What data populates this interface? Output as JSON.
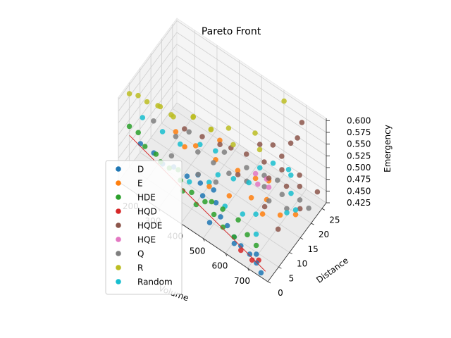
{
  "chart_data": {
    "type": "scatter",
    "projection": "3d",
    "title": "Pareto Front",
    "xlabel": "Volume",
    "ylabel": "Distance",
    "zlabel": "Emergency",
    "xlim": [
      120,
      790
    ],
    "ylim": [
      0,
      27
    ],
    "zlim": [
      0.425,
      0.605
    ],
    "xticks": [
      200,
      300,
      400,
      500,
      600,
      700
    ],
    "xtick_labels": [
      "200",
      "300",
      "400",
      "500",
      "600",
      "700"
    ],
    "yticks": [
      0,
      5,
      10,
      15,
      20,
      25
    ],
    "ytick_labels": [
      "0",
      "5",
      "10",
      "15",
      "20",
      "25"
    ],
    "zticks": [
      0.425,
      0.45,
      0.475,
      0.5,
      0.525,
      0.55,
      0.575,
      0.6
    ],
    "ztick_labels": [
      "0.425",
      "0.450",
      "0.475",
      "0.500",
      "0.525",
      "0.550",
      "0.575",
      "0.600"
    ],
    "grid": true,
    "legend_position": "lower-left",
    "series": [
      {
        "name": "D",
        "color": "#1f77b4",
        "points": [
          [
            180,
            4,
            0.5
          ],
          [
            230,
            5,
            0.49
          ],
          [
            260,
            6,
            0.47
          ],
          [
            300,
            7,
            0.47
          ],
          [
            350,
            8,
            0.46
          ],
          [
            400,
            9,
            0.455
          ],
          [
            430,
            7,
            0.45
          ],
          [
            480,
            8,
            0.445
          ],
          [
            520,
            6,
            0.44
          ],
          [
            560,
            5,
            0.44
          ],
          [
            600,
            4,
            0.435
          ],
          [
            640,
            3,
            0.435
          ],
          [
            680,
            3,
            0.43
          ],
          [
            720,
            2,
            0.43
          ],
          [
            750,
            1,
            0.425
          ],
          [
            380,
            10,
            0.46
          ],
          [
            450,
            10,
            0.45
          ],
          [
            500,
            3,
            0.44
          ],
          [
            620,
            2,
            0.44
          ],
          [
            700,
            4,
            0.43
          ]
        ]
      },
      {
        "name": "E",
        "color": "#ff7f0e",
        "points": [
          [
            280,
            10,
            0.52
          ],
          [
            350,
            12,
            0.5
          ],
          [
            420,
            14,
            0.48
          ],
          [
            500,
            16,
            0.47
          ],
          [
            560,
            18,
            0.46
          ],
          [
            600,
            20,
            0.455
          ],
          [
            650,
            12,
            0.45
          ],
          [
            700,
            15,
            0.445
          ],
          [
            450,
            8,
            0.47
          ],
          [
            520,
            10,
            0.46
          ],
          [
            580,
            14,
            0.45
          ],
          [
            620,
            17,
            0.44
          ],
          [
            330,
            9,
            0.51
          ],
          [
            400,
            18,
            0.49
          ],
          [
            740,
            18,
            0.44
          ]
        ]
      },
      {
        "name": "HDE",
        "color": "#2ca02c",
        "points": [
          [
            150,
            2,
            0.54
          ],
          [
            180,
            3,
            0.53
          ],
          [
            210,
            3,
            0.51
          ],
          [
            250,
            4,
            0.5
          ],
          [
            300,
            5,
            0.48
          ],
          [
            350,
            5,
            0.47
          ],
          [
            400,
            5,
            0.46
          ],
          [
            450,
            6,
            0.45
          ],
          [
            500,
            5,
            0.445
          ],
          [
            550,
            4,
            0.44
          ],
          [
            600,
            4,
            0.435
          ],
          [
            640,
            6,
            0.44
          ],
          [
            680,
            6,
            0.43
          ],
          [
            330,
            6,
            0.48
          ],
          [
            430,
            4,
            0.45
          ],
          [
            520,
            7,
            0.45
          ],
          [
            580,
            8,
            0.44
          ],
          [
            270,
            4,
            0.49
          ],
          [
            470,
            7,
            0.45
          ],
          [
            370,
            4,
            0.46
          ]
        ]
      },
      {
        "name": "HQD",
        "color": "#d62728",
        "points": [
          [
            700,
            2,
            0.43
          ],
          [
            720,
            3,
            0.43
          ],
          [
            650,
            2,
            0.435
          ]
        ]
      },
      {
        "name": "HQDE",
        "color": "#8c564b",
        "points": [
          [
            300,
            12,
            0.52
          ],
          [
            420,
            16,
            0.5
          ],
          [
            500,
            20,
            0.48
          ],
          [
            560,
            22,
            0.47
          ],
          [
            620,
            24,
            0.46
          ],
          [
            660,
            22,
            0.45
          ],
          [
            700,
            24,
            0.45
          ],
          [
            740,
            20,
            0.44
          ],
          [
            600,
            26,
            0.47
          ],
          [
            680,
            26,
            0.455
          ],
          [
            450,
            18,
            0.49
          ],
          [
            520,
            14,
            0.48
          ],
          [
            760,
            26,
            0.445
          ],
          [
            640,
            14,
            0.45
          ],
          [
            720,
            12,
            0.44
          ],
          [
            580,
            24,
            0.5
          ],
          [
            650,
            25,
            0.52
          ],
          [
            690,
            24,
            0.55
          ],
          [
            700,
            25,
            0.58
          ],
          [
            560,
            20,
            0.52
          ],
          [
            360,
            14,
            0.51
          ],
          [
            610,
            19,
            0.47
          ]
        ]
      },
      {
        "name": "HQE",
        "color": "#e377c2",
        "points": [
          [
            560,
            18,
            0.47
          ],
          [
            600,
            19,
            0.465
          ],
          [
            620,
            18,
            0.46
          ],
          [
            580,
            17,
            0.46
          ]
        ]
      },
      {
        "name": "Q",
        "color": "#7f7f7f",
        "points": [
          [
            200,
            8,
            0.53
          ],
          [
            280,
            10,
            0.51
          ],
          [
            360,
            12,
            0.49
          ],
          [
            420,
            13,
            0.48
          ],
          [
            480,
            14,
            0.47
          ],
          [
            540,
            16,
            0.46
          ],
          [
            600,
            18,
            0.455
          ],
          [
            660,
            20,
            0.445
          ],
          [
            720,
            22,
            0.44
          ],
          [
            320,
            12,
            0.52
          ],
          [
            400,
            8,
            0.48
          ],
          [
            460,
            10,
            0.47
          ],
          [
            520,
            18,
            0.47
          ],
          [
            580,
            20,
            0.46
          ],
          [
            640,
            16,
            0.45
          ],
          [
            700,
            18,
            0.44
          ],
          [
            760,
            22,
            0.435
          ],
          [
            300,
            6,
            0.5
          ],
          [
            440,
            16,
            0.49
          ],
          [
            620,
            22,
            0.45
          ]
        ]
      },
      {
        "name": "R",
        "color": "#bcbd22",
        "points": [
          [
            140,
            3,
            0.6
          ],
          [
            160,
            5,
            0.59
          ],
          [
            190,
            6,
            0.58
          ],
          [
            230,
            8,
            0.57
          ],
          [
            260,
            10,
            0.55
          ],
          [
            320,
            14,
            0.54
          ],
          [
            380,
            16,
            0.52
          ],
          [
            460,
            18,
            0.5
          ],
          [
            540,
            22,
            0.49
          ],
          [
            620,
            25,
            0.6
          ],
          [
            250,
            12,
            0.53
          ],
          [
            300,
            16,
            0.52
          ],
          [
            420,
            20,
            0.51
          ],
          [
            500,
            24,
            0.5
          ],
          [
            360,
            18,
            0.5
          ],
          [
            200,
            10,
            0.55
          ]
        ]
      },
      {
        "name": "Random",
        "color": "#17becf",
        "points": [
          [
            170,
            6,
            0.54
          ],
          [
            240,
            8,
            0.52
          ],
          [
            300,
            10,
            0.5
          ],
          [
            350,
            14,
            0.49
          ],
          [
            400,
            16,
            0.48
          ],
          [
            450,
            12,
            0.47
          ],
          [
            500,
            14,
            0.465
          ],
          [
            550,
            16,
            0.46
          ],
          [
            600,
            22,
            0.48
          ],
          [
            650,
            24,
            0.47
          ],
          [
            700,
            20,
            0.46
          ],
          [
            740,
            18,
            0.45
          ],
          [
            520,
            8,
            0.45
          ],
          [
            580,
            10,
            0.44
          ],
          [
            620,
            12,
            0.44
          ],
          [
            660,
            8,
            0.435
          ],
          [
            430,
            10,
            0.46
          ],
          [
            380,
            6,
            0.47
          ],
          [
            680,
            22,
            0.48
          ],
          [
            720,
            16,
            0.45
          ],
          [
            560,
            20,
            0.47
          ]
        ]
      }
    ],
    "trend_line": {
      "color": "#d62728",
      "points": [
        [
          160,
          1,
          0.53
        ],
        [
          400,
          3,
          0.47
        ],
        [
          600,
          3,
          0.44
        ],
        [
          760,
          2,
          0.425
        ]
      ]
    }
  }
}
